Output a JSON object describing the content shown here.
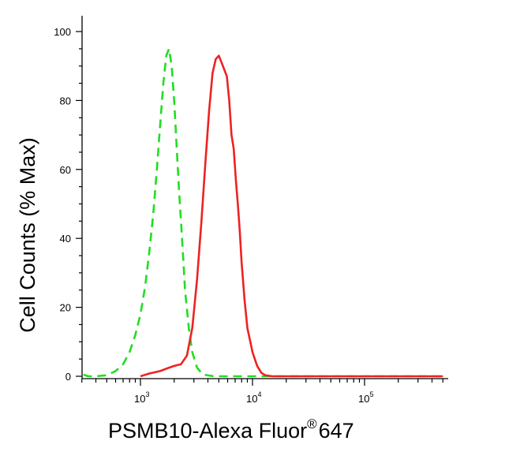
{
  "chart_data": {
    "type": "line",
    "title": "",
    "xlabel": {
      "prefix": "PSMB10-Alexa Fluor",
      "superscript": "®",
      "suffix": "647"
    },
    "ylabel": "Cell Counts (% Max)",
    "x_scale": "log",
    "xlim": [
      260,
      500000
    ],
    "ylim": [
      0,
      100
    ],
    "y_ticks": [
      0,
      20,
      40,
      60,
      80,
      100
    ],
    "x_ticks": [
      {
        "base": "10",
        "exp": "3",
        "value": 1000
      },
      {
        "base": "10",
        "exp": "4",
        "value": 10000
      },
      {
        "base": "10",
        "exp": "5",
        "value": 100000
      }
    ],
    "grid": false,
    "legend": "none",
    "series": [
      {
        "color": "#22dd22",
        "style": "dashed",
        "x": [
          265,
          275,
          290,
          310,
          340,
          400,
          500,
          600,
          700,
          800,
          900,
          1000,
          1100,
          1200,
          1300,
          1400,
          1500,
          1600,
          1700,
          1800,
          1900,
          2000,
          2100,
          2200,
          2300,
          2400,
          2500,
          2700,
          2900,
          3200,
          3600,
          4500,
          10000,
          100000,
          500000
        ],
        "y": [
          15,
          12,
          5,
          0.5,
          0,
          0,
          0.3,
          1.5,
          3.5,
          7,
          12,
          18,
          26,
          36,
          47,
          60,
          73,
          85,
          93,
          95,
          90,
          80,
          67,
          55,
          45,
          35,
          25,
          14,
          7,
          2.5,
          0.5,
          0,
          0,
          0,
          0
        ]
      },
      {
        "color": "#ee2222",
        "style": "solid",
        "x": [
          300,
          1000,
          1200,
          1500,
          1800,
          2000,
          2300,
          2600,
          2900,
          3200,
          3500,
          3800,
          4100,
          4400,
          4700,
          5000,
          5300,
          5600,
          5900,
          6200,
          6500,
          6800,
          7100,
          7400,
          7700,
          8000,
          8500,
          9000,
          10000,
          11000,
          12000,
          13000,
          15000,
          20000,
          100000,
          500000
        ],
        "y": [
          0,
          0,
          0.8,
          1.5,
          2.5,
          3,
          3.5,
          6,
          14,
          28,
          45,
          62,
          77,
          88,
          92,
          93,
          91,
          89,
          87,
          80,
          70,
          66,
          57,
          50,
          42,
          33,
          22,
          14,
          7,
          3,
          1,
          0.3,
          0,
          0,
          0,
          0
        ]
      }
    ]
  }
}
